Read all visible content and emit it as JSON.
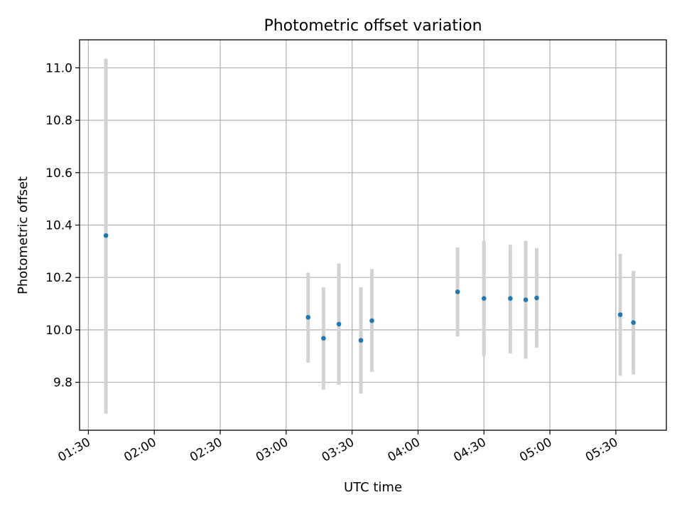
{
  "chart_data": {
    "type": "scatter",
    "title": "Photometric offset variation",
    "xlabel": "UTC time",
    "ylabel": "Photometric offset",
    "x_ticks": [
      "01:30",
      "02:00",
      "02:30",
      "03:00",
      "03:30",
      "04:00",
      "04:30",
      "05:00",
      "05:30"
    ],
    "y_ticks": [
      "9.8",
      "10.0",
      "10.2",
      "10.4",
      "10.6",
      "10.8",
      "11.0"
    ],
    "xlim": [
      "01:26",
      "05:53"
    ],
    "ylim": [
      9.617,
      11.107
    ],
    "grid": true,
    "colors": {
      "point": "#1f77b4",
      "errorbar": "#d3d3d3",
      "grid": "#b0b0b0"
    },
    "points": [
      {
        "x": "01:38",
        "y": 10.36,
        "low": 9.68,
        "high": 11.035
      },
      {
        "x": "03:10",
        "y": 10.048,
        "low": 9.875,
        "high": 10.218
      },
      {
        "x": "03:17",
        "y": 9.968,
        "low": 9.772,
        "high": 10.162
      },
      {
        "x": "03:24",
        "y": 10.022,
        "low": 9.79,
        "high": 10.253
      },
      {
        "x": "03:34",
        "y": 9.96,
        "low": 9.757,
        "high": 10.163
      },
      {
        "x": "03:39",
        "y": 10.035,
        "low": 9.84,
        "high": 10.232
      },
      {
        "x": "04:18",
        "y": 10.145,
        "low": 9.975,
        "high": 10.315
      },
      {
        "x": "04:30",
        "y": 10.12,
        "low": 9.9,
        "high": 10.34
      },
      {
        "x": "04:42",
        "y": 10.12,
        "low": 9.91,
        "high": 10.325
      },
      {
        "x": "04:49",
        "y": 10.115,
        "low": 9.89,
        "high": 10.34
      },
      {
        "x": "04:54",
        "y": 10.122,
        "low": 9.932,
        "high": 10.312
      },
      {
        "x": "05:32",
        "y": 10.058,
        "low": 9.825,
        "high": 10.29
      },
      {
        "x": "05:38",
        "y": 10.028,
        "low": 9.83,
        "high": 10.225
      }
    ]
  }
}
